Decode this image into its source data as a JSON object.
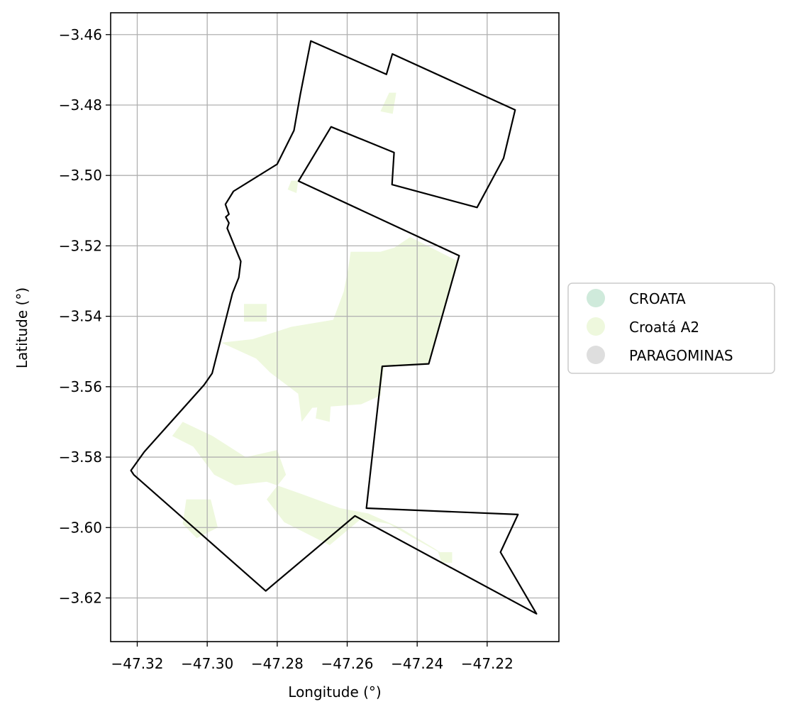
{
  "chart_data": {
    "type": "map",
    "xlabel": "Longitude (°)",
    "ylabel": "Latitude (°)",
    "xlim": [
      -47.3276,
      -47.1995
    ],
    "ylim": [
      -3.6324,
      -3.4538
    ],
    "x_ticks": [
      -47.32,
      -47.3,
      -47.28,
      -47.26,
      -47.24,
      -47.22
    ],
    "x_tick_labels": [
      "−47.32",
      "−47.30",
      "−47.28",
      "−47.26",
      "−47.24",
      "−47.22"
    ],
    "y_ticks": [
      -3.46,
      -3.48,
      -3.5,
      -3.52,
      -3.54,
      -3.56,
      -3.58,
      -3.6,
      -3.62
    ],
    "y_tick_labels": [
      "−3.46",
      "−3.48",
      "−3.50",
      "−3.52",
      "−3.54",
      "−3.56",
      "−3.58",
      "−3.60",
      "−3.62"
    ],
    "grid": true,
    "legend_position": "right",
    "legend": [
      {
        "label": "CROATA",
        "color": "#cfeadb"
      },
      {
        "label": "Croatá A2",
        "color": "#eef8dd"
      },
      {
        "label": "PARAGOMINAS",
        "color": "#dedede"
      }
    ],
    "boundary_color": "#000000",
    "boundary": [
      [
        -47.2704,
        -3.4618
      ],
      [
        -47.2488,
        -3.4713
      ],
      [
        -47.2471,
        -3.4655
      ],
      [
        -47.212,
        -3.4814
      ],
      [
        -47.2153,
        -3.4951
      ],
      [
        -47.2229,
        -3.5091
      ],
      [
        -47.2472,
        -3.5026
      ],
      [
        -47.2466,
        -3.4935
      ],
      [
        -47.2646,
        -3.4862
      ],
      [
        -47.2739,
        -3.5016
      ],
      [
        -47.228,
        -3.5228
      ],
      [
        -47.2367,
        -3.5535
      ],
      [
        -47.25,
        -3.5542
      ],
      [
        -47.2545,
        -3.5945
      ],
      [
        -47.2112,
        -3.5963
      ],
      [
        -47.2162,
        -3.607
      ],
      [
        -47.2059,
        -3.6245
      ],
      [
        -47.2578,
        -3.5967
      ],
      [
        -47.2833,
        -3.618
      ],
      [
        -47.321,
        -3.585
      ],
      [
        -47.3218,
        -3.5838
      ],
      [
        -47.318,
        -3.5785
      ],
      [
        -47.3009,
        -3.5595
      ],
      [
        -47.2986,
        -3.5562
      ],
      [
        -47.2928,
        -3.5335
      ],
      [
        -47.291,
        -3.529
      ],
      [
        -47.2904,
        -3.5244
      ],
      [
        -47.2943,
        -3.515
      ],
      [
        -47.2938,
        -3.5135
      ],
      [
        -47.2947,
        -3.5118
      ],
      [
        -47.2938,
        -3.511
      ],
      [
        -47.2948,
        -3.5082
      ],
      [
        -47.2925,
        -3.5045
      ],
      [
        -47.28,
        -3.4968
      ],
      [
        -47.2752,
        -3.4872
      ],
      [
        -47.2734,
        -3.477
      ],
      [
        -47.2704,
        -3.4618
      ]
    ],
    "croata_a2_areas": [
      [
        [
          -47.259,
          -3.5217
        ],
        [
          -47.2505,
          -3.5217
        ],
        [
          -47.2465,
          -3.5205
        ],
        [
          -47.242,
          -3.5175
        ],
        [
          -47.2285,
          -3.5243
        ],
        [
          -47.2367,
          -3.5535
        ],
        [
          -47.2495,
          -3.5543
        ],
        [
          -47.2505,
          -3.5625
        ],
        [
          -47.256,
          -3.565
        ],
        [
          -47.27,
          -3.566
        ],
        [
          -47.273,
          -3.57
        ],
        [
          -47.274,
          -3.562
        ],
        [
          -47.282,
          -3.556
        ],
        [
          -47.286,
          -3.552
        ],
        [
          -47.296,
          -3.5475
        ],
        [
          -47.287,
          -3.5465
        ],
        [
          -47.276,
          -3.543
        ],
        [
          -47.264,
          -3.541
        ],
        [
          -47.261,
          -3.533
        ],
        [
          -47.2598,
          -3.527
        ],
        [
          -47.259,
          -3.5217
        ]
      ],
      [
        [
          -47.307,
          -3.57
        ],
        [
          -47.2985,
          -3.574
        ],
        [
          -47.289,
          -3.58
        ],
        [
          -47.28,
          -3.578
        ],
        [
          -47.2775,
          -3.585
        ],
        [
          -47.283,
          -3.592
        ],
        [
          -47.278,
          -3.5985
        ],
        [
          -47.265,
          -3.605
        ],
        [
          -47.256,
          -3.5975
        ],
        [
          -47.248,
          -3.599
        ],
        [
          -47.241,
          -3.603
        ],
        [
          -47.232,
          -3.608
        ],
        [
          -47.235,
          -3.606
        ],
        [
          -47.245,
          -3.6
        ],
        [
          -47.254,
          -3.596
        ],
        [
          -47.262,
          -3.5945
        ],
        [
          -47.273,
          -3.5905
        ],
        [
          -47.283,
          -3.587
        ],
        [
          -47.292,
          -3.588
        ],
        [
          -47.298,
          -3.585
        ],
        [
          -47.304,
          -3.577
        ],
        [
          -47.31,
          -3.574
        ],
        [
          -47.307,
          -3.57
        ]
      ],
      [
        [
          -47.306,
          -3.592
        ],
        [
          -47.299,
          -3.592
        ],
        [
          -47.297,
          -3.6
        ],
        [
          -47.303,
          -3.603
        ],
        [
          -47.307,
          -3.599
        ],
        [
          -47.306,
          -3.592
        ]
      ],
      [
        [
          -47.2895,
          -3.5365
        ],
        [
          -47.283,
          -3.5365
        ],
        [
          -47.283,
          -3.5415
        ],
        [
          -47.2895,
          -3.5415
        ],
        [
          -47.2895,
          -3.5365
        ]
      ],
      [
        [
          -47.248,
          -3.4765
        ],
        [
          -47.246,
          -3.4765
        ],
        [
          -47.247,
          -3.4825
        ],
        [
          -47.2505,
          -3.4818
        ],
        [
          -47.248,
          -3.4765
        ]
      ],
      [
        [
          -47.276,
          -3.5015
        ],
        [
          -47.274,
          -3.5015
        ],
        [
          -47.2745,
          -3.505
        ],
        [
          -47.277,
          -3.504
        ],
        [
          -47.276,
          -3.5015
        ]
      ],
      [
        [
          -47.268,
          -3.562
        ],
        [
          -47.2645,
          -3.562
        ],
        [
          -47.265,
          -3.57
        ],
        [
          -47.269,
          -3.569
        ],
        [
          -47.268,
          -3.562
        ]
      ],
      [
        [
          -47.234,
          -3.607
        ],
        [
          -47.23,
          -3.607
        ],
        [
          -47.23,
          -3.61
        ],
        [
          -47.233,
          -3.61
        ],
        [
          -47.234,
          -3.607
        ]
      ]
    ]
  }
}
